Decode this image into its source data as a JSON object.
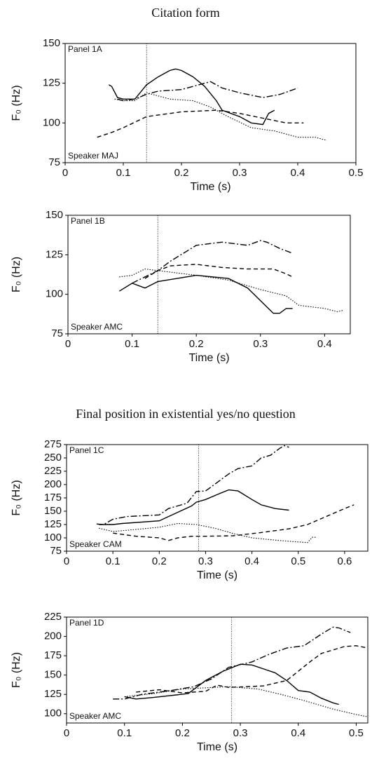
{
  "chart_data": [
    {
      "type": "line",
      "title": "Citation form",
      "panel_label": "Panel 1A",
      "speaker_label": "Speaker MAJ",
      "xlabel": "Time (s)",
      "ylabel": "F₀ (Hz)",
      "xlim": [
        0,
        0.5
      ],
      "ylim": [
        75,
        150
      ],
      "xticks": [
        0,
        0.1,
        0.2,
        0.3,
        0.4,
        0.5
      ],
      "yticks": [
        75,
        100,
        125,
        150
      ],
      "marker_x": 0.14,
      "series": [
        {
          "color": "#000000",
          "dash": "solid",
          "x": [
            0.075,
            0.08,
            0.09,
            0.1,
            0.12,
            0.14,
            0.16,
            0.18,
            0.19,
            0.2,
            0.22,
            0.24,
            0.26,
            0.27,
            0.3,
            0.32,
            0.34,
            0.35,
            0.36
          ],
          "values": [
            124,
            123,
            116,
            115,
            115,
            124,
            129,
            133,
            134,
            133,
            129,
            123,
            114,
            108,
            104,
            100,
            99,
            106,
            108
          ]
        },
        {
          "color": "#000000",
          "dash": "dashdot",
          "x": [
            0.09,
            0.1,
            0.12,
            0.14,
            0.16,
            0.2,
            0.25,
            0.27,
            0.3,
            0.34,
            0.37,
            0.4
          ],
          "values": [
            115,
            114,
            115,
            118,
            120,
            121,
            126,
            122,
            119,
            116,
            118,
            122
          ]
        },
        {
          "color": "#000000",
          "dash": "dotted",
          "x": [
            0.085,
            0.1,
            0.12,
            0.14,
            0.18,
            0.22,
            0.25,
            0.28,
            0.32,
            0.36,
            0.4,
            0.43,
            0.45
          ],
          "values": [
            115,
            114,
            114,
            119,
            115,
            114,
            110,
            104,
            97,
            95,
            91,
            91,
            89
          ]
        },
        {
          "color": "#000000",
          "dash": "dashed",
          "x": [
            0.055,
            0.08,
            0.1,
            0.14,
            0.2,
            0.26,
            0.3,
            0.34,
            0.38,
            0.41
          ],
          "values": [
            91,
            94,
            97,
            104,
            107,
            108,
            106,
            103,
            100,
            100
          ]
        }
      ]
    },
    {
      "type": "line",
      "panel_label": "Panel 1B",
      "speaker_label": "Speaker AMC",
      "xlabel": "Time (s)",
      "ylabel": "F₀ (Hz)",
      "xlim": [
        0,
        0.44
      ],
      "ylim": [
        75,
        150
      ],
      "xticks": [
        0,
        0.1,
        0.2,
        0.3,
        0.4
      ],
      "yticks": [
        75,
        100,
        125,
        150
      ],
      "marker_x": 0.14,
      "series": [
        {
          "color": "#000000",
          "dash": "solid",
          "x": [
            0.08,
            0.1,
            0.12,
            0.14,
            0.2,
            0.25,
            0.28,
            0.3,
            0.32,
            0.33,
            0.34,
            0.35
          ],
          "values": [
            102,
            107,
            104,
            108,
            112,
            110,
            104,
            96,
            88,
            88,
            91,
            91
          ]
        },
        {
          "color": "#000000",
          "dash": "dashdot",
          "x": [
            0.1,
            0.14,
            0.16,
            0.18,
            0.2,
            0.24,
            0.26,
            0.28,
            0.3,
            0.31,
            0.33,
            0.35
          ],
          "values": [
            107,
            115,
            121,
            126,
            131,
            133,
            132,
            131,
            134,
            133,
            129,
            126
          ]
        },
        {
          "color": "#000000",
          "dash": "dashed",
          "x": [
            0.12,
            0.14,
            0.16,
            0.2,
            0.24,
            0.28,
            0.32,
            0.34,
            0.35
          ],
          "values": [
            110,
            115,
            118,
            119,
            117,
            116,
            116,
            113,
            111
          ]
        },
        {
          "color": "#000000",
          "dash": "dotted",
          "x": [
            0.08,
            0.1,
            0.12,
            0.16,
            0.2,
            0.25,
            0.3,
            0.34,
            0.36,
            0.4,
            0.42,
            0.43
          ],
          "values": [
            111,
            112,
            116,
            114,
            112,
            109,
            103,
            99,
            93,
            91,
            89,
            90
          ]
        }
      ]
    },
    {
      "type": "line",
      "title": "Final position in existential yes/no question",
      "panel_label": "Panel 1C",
      "speaker_label": "Speaker CAM",
      "xlabel": "Time (s)",
      "ylabel": "F₀ (Hz)",
      "xlim": [
        0,
        0.65
      ],
      "ylim": [
        75,
        275
      ],
      "xticks": [
        0,
        0.1,
        0.2,
        0.3,
        0.4,
        0.5,
        0.6
      ],
      "yticks": [
        75,
        100,
        125,
        150,
        175,
        200,
        225,
        250,
        275
      ],
      "marker_x": 0.285,
      "series": [
        {
          "color": "#000000",
          "dash": "dashdot",
          "x": [
            0.065,
            0.08,
            0.1,
            0.13,
            0.2,
            0.22,
            0.26,
            0.28,
            0.3,
            0.35,
            0.37,
            0.4,
            0.42,
            0.44,
            0.46,
            0.47,
            0.48
          ],
          "values": [
            126,
            125,
            135,
            140,
            143,
            155,
            165,
            187,
            188,
            220,
            230,
            235,
            250,
            255,
            268,
            273,
            270
          ]
        },
        {
          "color": "#000000",
          "dash": "solid",
          "x": [
            0.07,
            0.1,
            0.12,
            0.2,
            0.22,
            0.24,
            0.27,
            0.28,
            0.3,
            0.33,
            0.35,
            0.37,
            0.4,
            0.42,
            0.45,
            0.48
          ],
          "values": [
            125,
            125,
            127,
            132,
            140,
            148,
            160,
            167,
            172,
            183,
            190,
            188,
            172,
            162,
            155,
            152
          ]
        },
        {
          "color": "#000000",
          "dash": "dotted",
          "x": [
            0.07,
            0.1,
            0.14,
            0.2,
            0.24,
            0.28,
            0.32,
            0.36,
            0.4,
            0.46,
            0.52,
            0.53,
            0.54
          ],
          "values": [
            118,
            112,
            115,
            120,
            127,
            125,
            118,
            108,
            100,
            95,
            91,
            101,
            101
          ]
        },
        {
          "color": "#000000",
          "dash": "dashed",
          "x": [
            0.1,
            0.15,
            0.2,
            0.22,
            0.24,
            0.27,
            0.3,
            0.36,
            0.42,
            0.48,
            0.52,
            0.56,
            0.6,
            0.62
          ],
          "values": [
            109,
            103,
            100,
            95,
            100,
            103,
            103,
            104,
            110,
            117,
            125,
            140,
            155,
            162
          ]
        }
      ]
    },
    {
      "type": "line",
      "panel_label": "Panel 1D",
      "speaker_label": "Speaker AMC",
      "xlabel": "Time (s)",
      "ylabel": "F₀ (Hz)",
      "xlim": [
        0,
        0.52
      ],
      "ylim": [
        88,
        225
      ],
      "xticks": [
        0,
        0.1,
        0.2,
        0.3,
        0.4,
        0.5
      ],
      "yticks": [
        100,
        125,
        150,
        175,
        200,
        225
      ],
      "marker_x": 0.285,
      "series": [
        {
          "color": "#000000",
          "dash": "solid",
          "x": [
            0.1,
            0.12,
            0.15,
            0.21,
            0.24,
            0.27,
            0.3,
            0.32,
            0.36,
            0.38,
            0.4,
            0.42,
            0.44,
            0.46,
            0.47
          ],
          "values": [
            122,
            119,
            121,
            126,
            143,
            155,
            164,
            163,
            153,
            143,
            130,
            128,
            120,
            114,
            112
          ]
        },
        {
          "color": "#000000",
          "dash": "dashdot",
          "x": [
            0.08,
            0.1,
            0.13,
            0.18,
            0.22,
            0.25,
            0.28,
            0.32,
            0.35,
            0.38,
            0.41,
            0.44,
            0.46,
            0.47,
            0.49
          ],
          "values": [
            119,
            119,
            125,
            130,
            135,
            145,
            160,
            167,
            177,
            185,
            188,
            203,
            212,
            211,
            205
          ]
        },
        {
          "color": "#000000",
          "dash": "dashed",
          "x": [
            0.12,
            0.16,
            0.2,
            0.24,
            0.26,
            0.28,
            0.34,
            0.38,
            0.4,
            0.42,
            0.44,
            0.48,
            0.5,
            0.52
          ],
          "values": [
            128,
            131,
            127,
            129,
            137,
            134,
            136,
            143,
            155,
            167,
            178,
            187,
            188,
            185
          ]
        },
        {
          "color": "#000000",
          "dash": "dotted",
          "x": [
            0.1,
            0.15,
            0.2,
            0.28,
            0.33,
            0.37,
            0.41,
            0.46,
            0.5,
            0.52
          ],
          "values": [
            122,
            126,
            132,
            135,
            132,
            125,
            117,
            106,
            99,
            96
          ]
        }
      ]
    }
  ]
}
